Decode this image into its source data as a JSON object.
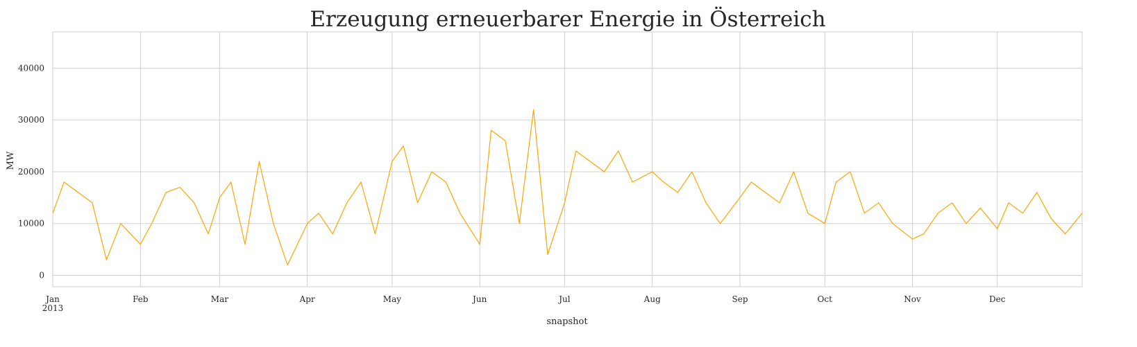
{
  "chart_data": {
    "type": "line",
    "title": "Erzeugung erneuerbarer Energie in Österreich",
    "xlabel": "snapshot",
    "ylabel": "MW",
    "year_label": "2013",
    "x_tick_labels": [
      "Jan",
      "Feb",
      "Mar",
      "Apr",
      "May",
      "Jun",
      "Jul",
      "Aug",
      "Sep",
      "Oct",
      "Nov",
      "Dec"
    ],
    "x_tick_dates": [
      "2013-01-01",
      "2013-02-01",
      "2013-03-01",
      "2013-04-01",
      "2013-05-01",
      "2013-06-01",
      "2013-07-01",
      "2013-08-01",
      "2013-09-01",
      "2013-10-01",
      "2013-11-01",
      "2013-12-01"
    ],
    "y_ticks": [
      0,
      10000,
      20000,
      30000,
      40000
    ],
    "y_tick_labels": [
      "0",
      "10000",
      "20000",
      "30000",
      "40000"
    ],
    "xlim": [
      "2013-01-01",
      "2013-12-31"
    ],
    "ylim": [
      -2200,
      47000
    ],
    "grid": true,
    "color": "#FFA500",
    "series": [
      {
        "x": [
          "2013-01-01",
          "2013-01-05",
          "2013-01-10",
          "2013-01-15",
          "2013-01-20",
          "2013-01-25",
          "2013-02-01",
          "2013-02-05",
          "2013-02-10",
          "2013-02-15",
          "2013-02-20",
          "2013-02-25",
          "2013-03-01",
          "2013-03-05",
          "2013-03-10",
          "2013-03-15",
          "2013-03-20",
          "2013-03-25",
          "2013-04-01",
          "2013-04-05",
          "2013-04-10",
          "2013-04-15",
          "2013-04-20",
          "2013-04-25",
          "2013-05-01",
          "2013-05-05",
          "2013-05-10",
          "2013-05-15",
          "2013-05-20",
          "2013-05-25",
          "2013-06-01",
          "2013-06-05",
          "2013-06-10",
          "2013-06-15",
          "2013-06-20",
          "2013-06-25",
          "2013-07-01",
          "2013-07-05",
          "2013-07-10",
          "2013-07-15",
          "2013-07-20",
          "2013-07-25",
          "2013-08-01",
          "2013-08-05",
          "2013-08-10",
          "2013-08-15",
          "2013-08-20",
          "2013-08-25",
          "2013-09-01",
          "2013-09-05",
          "2013-09-10",
          "2013-09-15",
          "2013-09-20",
          "2013-09-25",
          "2013-10-01",
          "2013-10-05",
          "2013-10-10",
          "2013-10-15",
          "2013-10-20",
          "2013-10-25",
          "2013-11-01",
          "2013-11-05",
          "2013-11-10",
          "2013-11-15",
          "2013-11-20",
          "2013-11-25",
          "2013-12-01",
          "2013-12-05",
          "2013-12-10",
          "2013-12-15",
          "2013-12-20",
          "2013-12-25",
          "2013-12-31"
        ],
        "y": [
          12000,
          18000,
          16000,
          14000,
          3000,
          10000,
          6000,
          10000,
          16000,
          17000,
          14000,
          8000,
          15000,
          18000,
          6000,
          22000,
          10000,
          2000,
          10000,
          12000,
          8000,
          14000,
          18000,
          8000,
          22000,
          25000,
          14000,
          20000,
          18000,
          12000,
          6000,
          28000,
          26000,
          10000,
          32000,
          4000,
          14000,
          24000,
          22000,
          20000,
          24000,
          18000,
          20000,
          18000,
          16000,
          20000,
          14000,
          10000,
          15000,
          18000,
          16000,
          14000,
          20000,
          12000,
          10000,
          18000,
          20000,
          12000,
          14000,
          10000,
          7000,
          8000,
          12000,
          14000,
          10000,
          13000,
          9000,
          14000,
          12000,
          16000,
          11000,
          8000,
          12000
        ]
      }
    ]
  }
}
